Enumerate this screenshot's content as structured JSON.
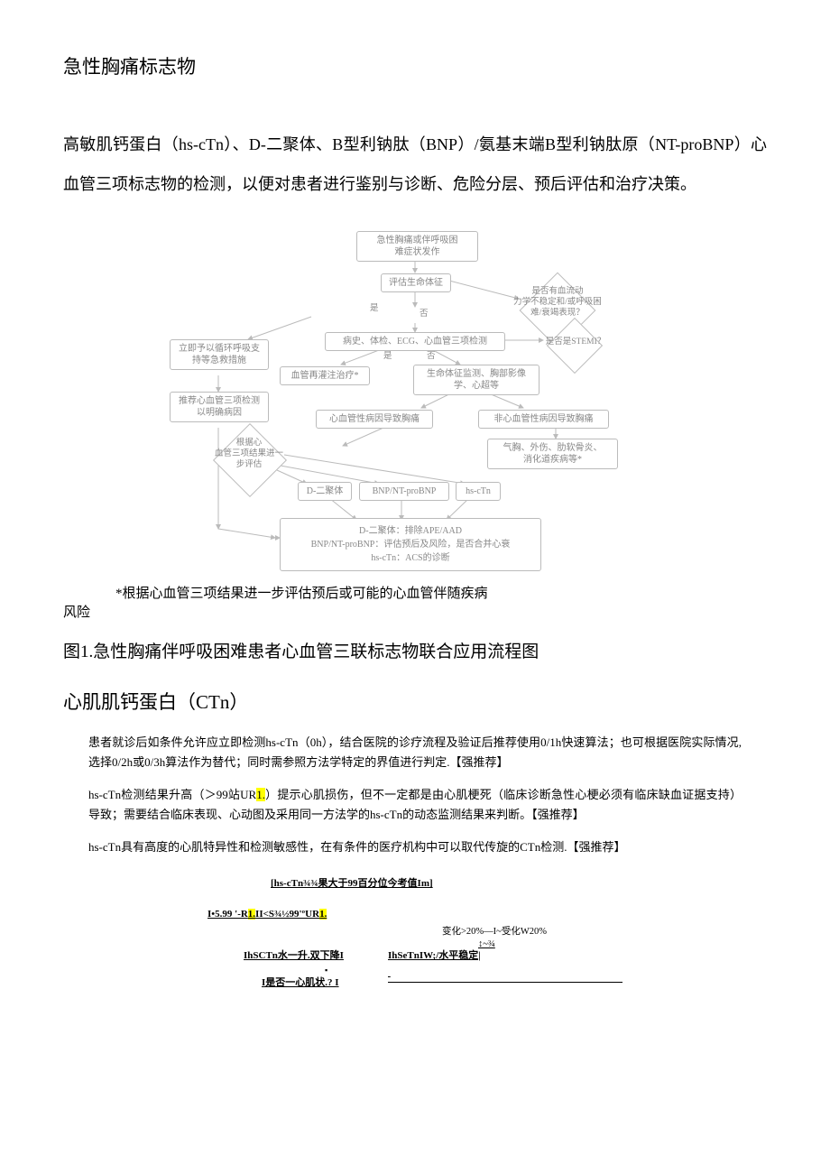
{
  "title": "急性胸痛标志物",
  "intro": "高敏肌钙蛋白（hs-cTn）、D-二聚体、B型利钠肽（BNP）/氨基末端B型利钠肽原（NT-proBNP）心血管三项标志物的检测，以便对患者进行鉴别与诊断、危险分层、预后评估和治疗决策。",
  "flow": {
    "n1": "急性胸痛或伴呼吸困\n难症状发作",
    "n2": "评估生命体征",
    "d1": "是否有血流动\n力学不稳定和/或呼吸困\n难/衰竭表现？",
    "n3": "病史、体检、ECG、心血管三项检测",
    "d2": "是否是STEMI？",
    "n4": "立即予以循环呼吸支\n持等急救措施",
    "n5": "推荐心血管三项检测\n以明确病因",
    "n6": "血管再灌注治疗*",
    "n7": "生命体征监测、胸部影像\n学、心超等",
    "n8": "心血管性病因导致胸痛",
    "n9": "非心血管性病因导致胸痛",
    "d3": "根据心\n血管三项结果进一\n步评估",
    "n10": "气胸、外伤、肋软骨炎、\n消化道疾病等*",
    "b1": "D-二聚体",
    "b2": "BNP/NT-proBNP",
    "b3": "hs-cTn",
    "final1": "D-二聚体：排除APE/AAD",
    "final2": "BNP/NT-proBNP：评估预后及风险，是否合并心衰",
    "final3": "hs-cTn：ACS的诊断",
    "yes": "是",
    "no": "否"
  },
  "caption1a": "*根据心血管三项结果进一步评估预后或可能的心血管伴随疾病",
  "caption1b": "风险",
  "caption2": "图1.急性胸痛伴呼吸困难患者心血管三联标志物联合应用流程图",
  "heading2": "心肌肌钙蛋白（CTn）",
  "p1": "患者就诊后如条件允许应立即检测hs-cTn（0h），结合医院的诊疗流程及验证后推荐使用0/1h快速算法；也可根据医院实际情况,选择0/2h或0/3h算法作为替代；同时需参照方法学特定的界值进行判定.【强推荐】",
  "p2a": "hs-cTn检测结果升高（＞99",
  "p2unit": "站UR",
  "p2hl": "1.",
  "p2b": "）提示心肌损伤，但不一定都是由心肌梗死（临床诊断急性心梗必须有临床缺血证据支持）导致；需要结合临床表现、心动图及采用同一方法学的hs-cTn的动态监测结果来判断。【强推荐】",
  "p3": "hs-cTn具有高度的心肌特异性和检测敏感性，在有条件的医疗机构中可以取代传旋的CTn检测.【强推荐】",
  "bottom": {
    "l1": "[hs-cTn¾¾果大于99百分位今考值Im]",
    "l2a": "I•5.99 '-R",
    "l2hl1": "1.",
    "l2b": "II<S¾½99'ºUR",
    "l2hl2": "1.",
    "r1": "变化>20%—I~受化W20%",
    "r2": "↕~¾",
    "l3a": "IhSCTn水一升.双下降I",
    "l3b": "IhSeTnIW;/水平稳定|",
    "arrow": "▪",
    "l4": "I是否一心肌状.? I"
  }
}
